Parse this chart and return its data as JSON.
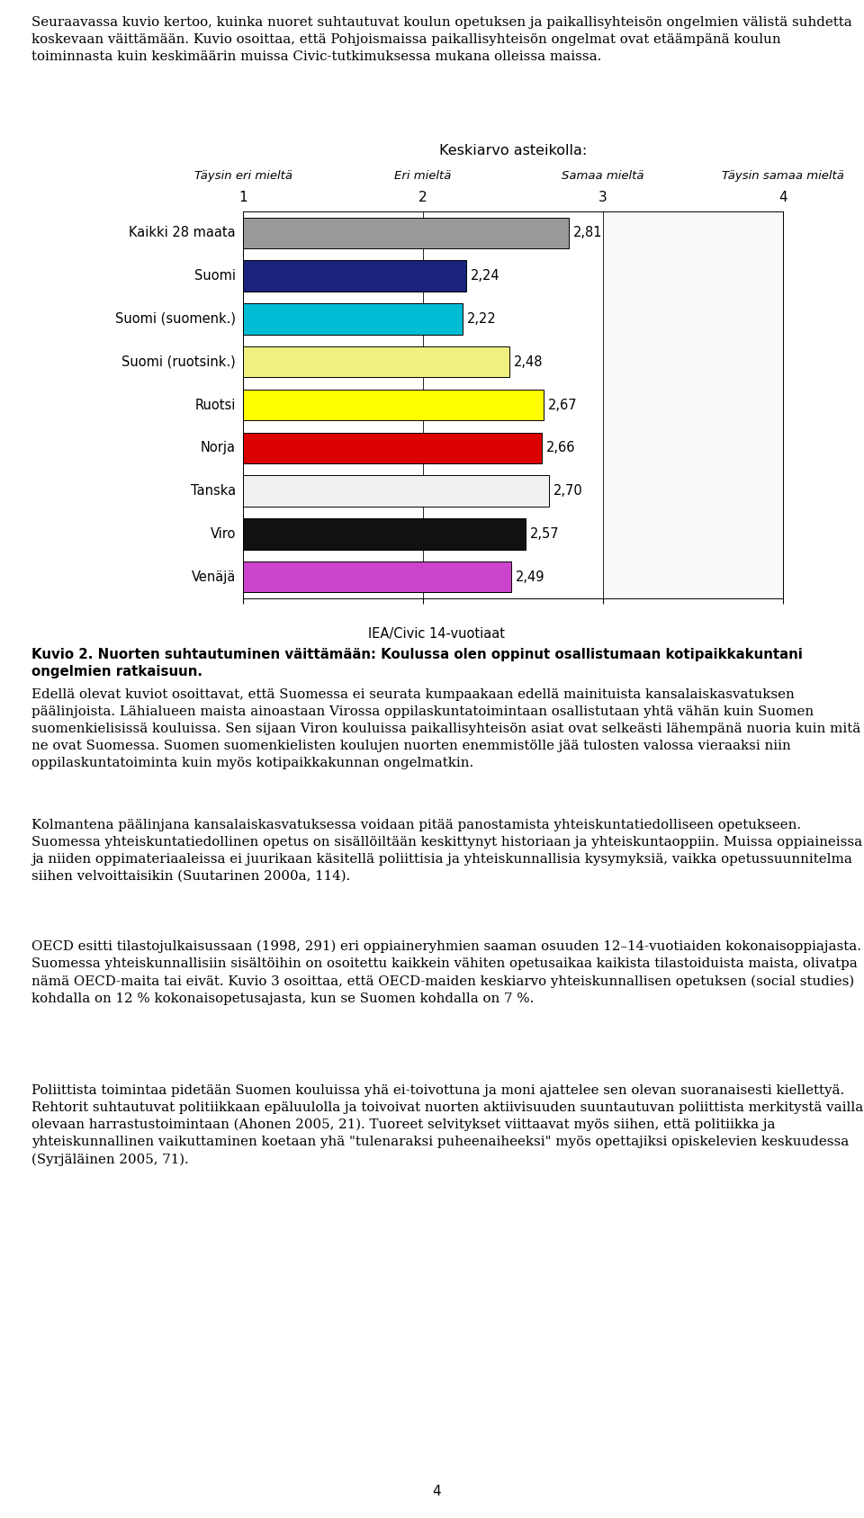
{
  "title_above": "Keskiarvo asteikolla:",
  "scale_labels": [
    "Täysin eri mieltä",
    "Eri mieltä",
    "Samaa mieltä",
    "Täysin samaa mieltä"
  ],
  "scale_ticks": [
    1,
    2,
    3,
    4
  ],
  "source": "IEA/Civic 14-vuotiaat",
  "categories": [
    "Kaikki 28 maata",
    "Suomi",
    "Suomi (suomenk.)",
    "Suomi (ruotsink.)",
    "Ruotsi",
    "Norja",
    "Tanska",
    "Viro",
    "Venäjä"
  ],
  "values": [
    2.81,
    2.24,
    2.22,
    2.48,
    2.67,
    2.66,
    2.7,
    2.57,
    2.49
  ],
  "bar_colors": [
    "#999999",
    "#1a237e",
    "#00bcd4",
    "#f0f080",
    "#ffff00",
    "#dd0000",
    "#f0f0f0",
    "#111111",
    "#cc44cc"
  ],
  "xlim": [
    1,
    4
  ],
  "figsize": [
    9.6,
    16.87
  ],
  "dpi": 100,
  "para1": "Seuraavassa kuvio kertoo, kuinka nuoret suhtautuvat koulun opetuksen ja paikallisyhteisön ongelmien välistä suhdetta koskevaan väittämään. Kuvio osoittaa, että Pohjoismaissa paikallisyhteisön ongelmat ovat etäämpänä koulun toiminnasta kuin keskimäärin muissa Civic-tutkimuksessa mukana olleissa maissa.",
  "caption": "Kuvio 2. Nuorten suhtautuminen väittämään: Koulussa olen oppinut osallistumaan kotipaikkakuntani ongelmien ratkaisuun.",
  "para2": "Edellä olevat kuviot osoittavat, että Suomessa ei seurata kumpaakaan edellä mainituista kansalaiskasvatuksen päälinjoista. Lähialueen maista ainoastaan Virossa oppilaskuntatoimintaan osallistutaan yhtä vähän kuin Suomen suomenkielisissä kouluissa. Sen sijaan Viron kouluissa paikallisyhteisön asiat ovat selkeästi lähempänä nuoria kuin mitä ne ovat Suomessa. Suomen suomenkielisten koulujen nuorten enemmistölle jää tulosten valossa vieraaksi niin oppilaskuntatoiminta kuin myös kotipaikkakunnan ongelmatkin.",
  "para3": "Kolmantena päälinjana kansalaiskasvatuksessa voidaan pitää panostamista yhteiskuntatiedolliseen opetukseen. Suomessa yhteiskuntatiedollinen opetus on sisällöiltään keskittynyt historiaan ja yhteiskuntaoppiin. Muissa oppiaineissa ja niiden oppimateriaaleissa ei juurikaan käsitellä poliittisia ja yhteiskunnallisia kysymyksiä, vaikka opetussuunnitelma siihen velvoittaisikin (Suutarinen 2000a, 114).",
  "para4": "OECD esitti tilastojulkaisussaan (1998, 291) eri oppiaineryhmien saaman osuuden 12–14-vuotiaiden kokonaisoppiajasta. Suomessa yhteiskunnallisiin sisältöihin on osoitettu kaikkein vähiten opetusaikaa kaikista tilastoiduista maista, olivatpa nämä OECD-maita tai eivät. Kuvio 3 osoittaa, että OECD-maiden keskiarvo yhteiskunnallisen opetuksen (social studies) kohdalla on 12 % kokonaisopetusajasta, kun se Suomen kohdalla on 7 %.",
  "para5": "Poliittista toimintaa pidetään Suomen kouluissa yhä ei-toivottuna ja moni ajattelee sen olevan suoranaisesti kiellettyä. Rehtorit suhtautuvat politiikkaan epäluulolla ja toivoivat nuorten aktiivisuuden suuntautuvan poliittista merkitystä vailla olevaan harrastustoimintaan (Ahonen 2005, 21). Tuoreet selvitykset viittaavat myös siihen, että politiikka ja yhteiskunnallinen vaikuttaminen koetaan yhä \"tulenaraksi puheenaiheeksi\" myös opettajiksi opiskelevien keskuudessa (Syrjäläinen 2005, 71).",
  "page_number": "4"
}
